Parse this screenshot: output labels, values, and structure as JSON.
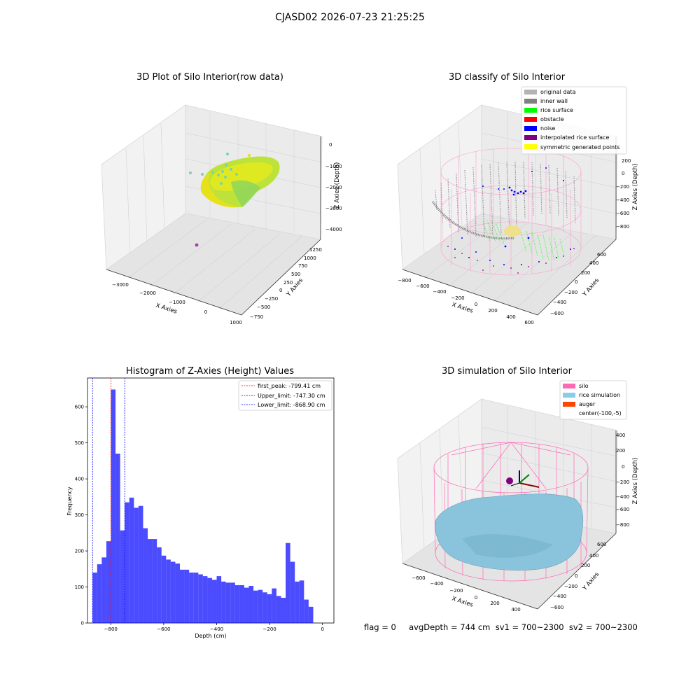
{
  "figure": {
    "suptitle": "CJASD02 2026-07-23 21:25:25"
  },
  "panel_a": {
    "title": "3D Plot of Silo Interior(row data)",
    "xlabel": "X Axies",
    "ylabel": "Y Axies",
    "zlabel": "Z Axies (Depth)",
    "xticks": [
      "−3000",
      "−2000",
      "−1000",
      "0",
      "1000"
    ],
    "yticks": [
      "−750",
      "−500",
      "−250",
      "0",
      "250",
      "500",
      "750",
      "1000",
      "1250"
    ],
    "zticks": [
      "0",
      "−1000",
      "−2000",
      "−3000",
      "−4000"
    ],
    "colors": {
      "surface_a": "#e6e619",
      "surface_b": "#9ad94f",
      "scatter": "#7fd1a8",
      "outlier": "#a341a8"
    }
  },
  "panel_b": {
    "title": "3D classify of Silo Interior",
    "xlabel": "X Axies",
    "ylabel": "Y Axies",
    "zlabel": "Z Axies (Depth)",
    "xticks": [
      "−800",
      "−600",
      "−400",
      "−200",
      "0",
      "200",
      "400",
      "600"
    ],
    "yticks": [
      "−600",
      "−400",
      "−200",
      "0",
      "200",
      "400",
      "600"
    ],
    "zticks": [
      "200",
      "0",
      "−200",
      "−400",
      "−600",
      "−800"
    ],
    "legend": [
      {
        "label": "original data",
        "color": "#b3b3b3"
      },
      {
        "label": "inner wall",
        "color": "#808080"
      },
      {
        "label": "rice surface",
        "color": "#00ff00"
      },
      {
        "label": "obstacle",
        "color": "#ff0000"
      },
      {
        "label": "noise",
        "color": "#0000ff"
      },
      {
        "label": "interpolated rice surface",
        "color": "#800080"
      },
      {
        "label": "symmetric generated points",
        "color": "#ffff00"
      }
    ]
  },
  "panel_c": {
    "title": "Histogram of Z-Axies (Height) Values",
    "xlabel": "Depth (cm)",
    "ylabel": "Frequency",
    "legend": [
      {
        "label": "first_peak: -799.41 cm",
        "color": "#ff0000"
      },
      {
        "label": "Upper_limit: -747.30 cm",
        "color": "#0000ff"
      },
      {
        "label": "Lower_limit: -868.90 cm",
        "color": "#0000ff"
      }
    ]
  },
  "panel_d": {
    "title": "3D simulation of Silo Interior",
    "xlabel": "X Axies",
    "ylabel": "Y Axies",
    "zlabel": "Z Axies (Depth)",
    "xticks": [
      "−600",
      "−400",
      "−200",
      "0",
      "200",
      "400"
    ],
    "yticks": [
      "−600",
      "−400",
      "−200",
      "0",
      "200",
      "400",
      "600"
    ],
    "zticks": [
      "400",
      "200",
      "0",
      "−200",
      "−400",
      "−600",
      "−800"
    ],
    "legend": [
      {
        "label": "silo",
        "color": "#ff69b4"
      },
      {
        "label": "rice simulation",
        "color": "#87ceeb"
      },
      {
        "label": "auger",
        "color": "#ff4500"
      },
      {
        "label": "center(-100,-5)",
        "color": ""
      }
    ]
  },
  "footer": {
    "text": "flag = 0     avgDepth = 744 cm  sv1 = 700~2300  sv2 = 700~2300"
  },
  "chart_data": {
    "type": "bar",
    "title": "Histogram of Z-Axies (Height) Values",
    "xlabel": "Depth (cm)",
    "ylabel": "Frequency",
    "xlim": [
      -888,
      43
    ],
    "ylim": [
      0,
      680
    ],
    "xticks": [
      -800,
      -600,
      -400,
      -200,
      0
    ],
    "yticks": [
      0,
      100,
      200,
      300,
      400,
      500,
      600
    ],
    "bar_color": "#0000ff",
    "bin_start": -868.9,
    "bin_width": 17.37,
    "values": [
      140,
      163,
      182,
      227,
      648,
      470,
      257,
      335,
      348,
      320,
      325,
      263,
      233,
      233,
      210,
      187,
      176,
      170,
      165,
      148,
      148,
      140,
      140,
      135,
      130,
      125,
      120,
      130,
      115,
      112,
      112,
      105,
      105,
      98,
      103,
      90,
      92,
      85,
      80,
      96,
      75,
      70,
      222,
      170,
      115,
      118,
      65,
      45
    ],
    "reference_lines": [
      {
        "name": "first_peak: -799.41 cm",
        "x": -799.41,
        "color": "#ff0000"
      },
      {
        "name": "Upper_limit: -747.30 cm",
        "x": -747.3,
        "color": "#0000ff"
      },
      {
        "name": "Lower_limit: -868.90 cm",
        "x": -868.9,
        "color": "#0000ff"
      }
    ]
  }
}
